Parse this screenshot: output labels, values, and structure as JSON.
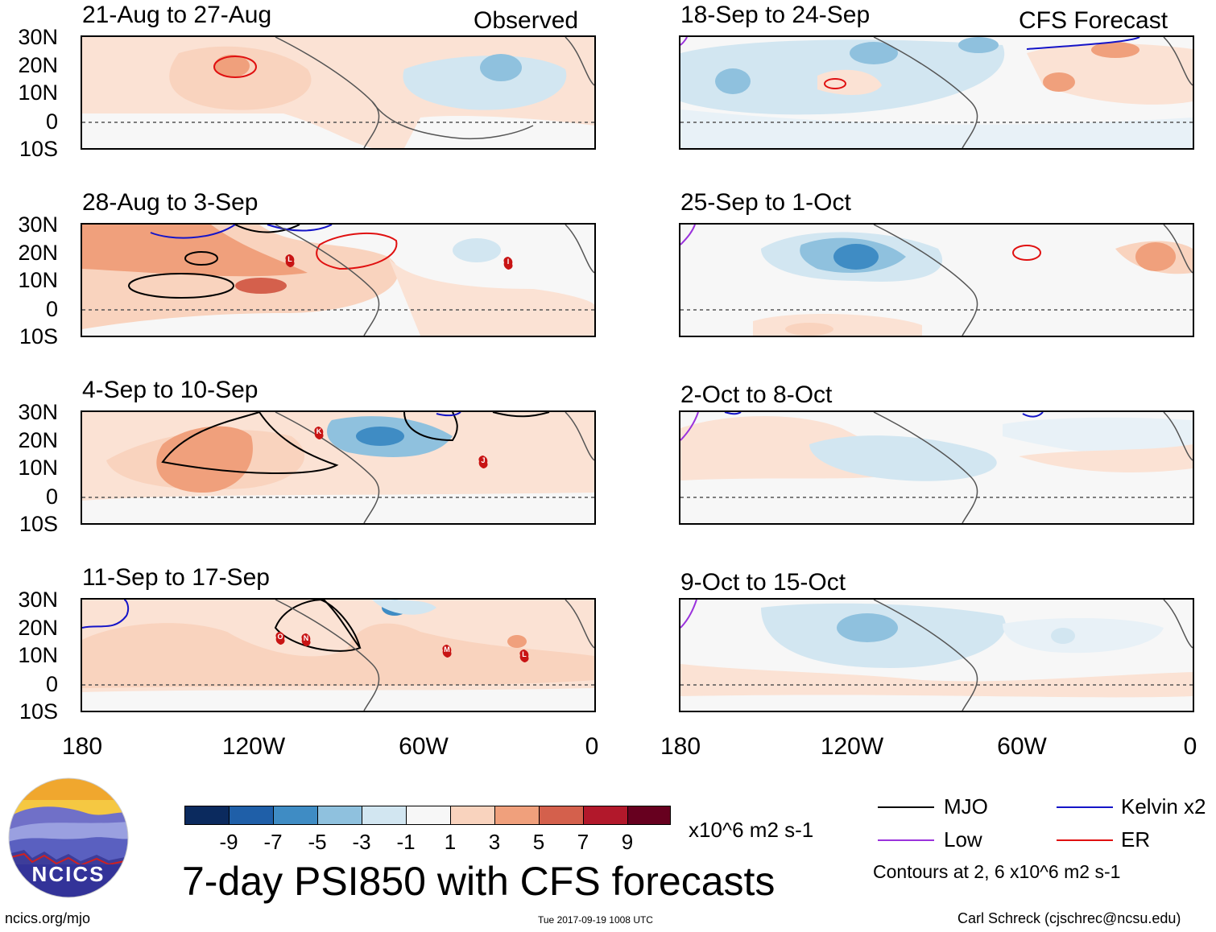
{
  "panels": [
    {
      "title": "21-Aug to 27-Aug",
      "tag": "Observed"
    },
    {
      "title": "18-Sep to 24-Sep",
      "tag": "CFS Forecast"
    },
    {
      "title": "28-Aug to 3-Sep",
      "tag": ""
    },
    {
      "title": "25-Sep to 1-Oct",
      "tag": ""
    },
    {
      "title": "4-Sep to 10-Sep",
      "tag": ""
    },
    {
      "title": "2-Oct to 8-Oct",
      "tag": ""
    },
    {
      "title": "11-Sep to 17-Sep",
      "tag": ""
    },
    {
      "title": "9-Oct to 15-Oct",
      "tag": ""
    }
  ],
  "lat_labels": [
    "30N",
    "20N",
    "10N",
    "0",
    "10S"
  ],
  "lon_labels": [
    "180",
    "120W",
    "60W",
    "0"
  ],
  "storm_markers": [
    "L",
    "I",
    "K",
    "J",
    "O",
    "N",
    "M",
    "L"
  ],
  "colorbar": {
    "ticks": [
      "-9",
      "-7",
      "-5",
      "-3",
      "-1",
      "1",
      "3",
      "5",
      "7",
      "9"
    ],
    "colors": [
      "#0b2a5e",
      "#1f5fa8",
      "#3f8cc4",
      "#8fc1de",
      "#d2e6f1",
      "#f7f7f7",
      "#f9d3be",
      "#f0a07c",
      "#d4604c",
      "#b2182b",
      "#67001f"
    ],
    "units": "x10^6 m2 s-1"
  },
  "main_title": "7-day PSI850 with CFS forecasts",
  "legend": {
    "items": [
      {
        "label": "MJO",
        "color": "#000000"
      },
      {
        "label": "Kelvin x2",
        "color": "#1414c8"
      },
      {
        "label": "Low",
        "color": "#9a32dc"
      },
      {
        "label": "ER",
        "color": "#e01010"
      }
    ],
    "note": "Contours at 2, 6 x10^6 m2 s-1"
  },
  "logo": {
    "text": "NCICS"
  },
  "footer": {
    "left": "ncics.org/mjo",
    "center": "Tue 2017-09-19 1008 UTC",
    "right": "Carl Schreck (cjschrec@ncsu.edu)"
  }
}
